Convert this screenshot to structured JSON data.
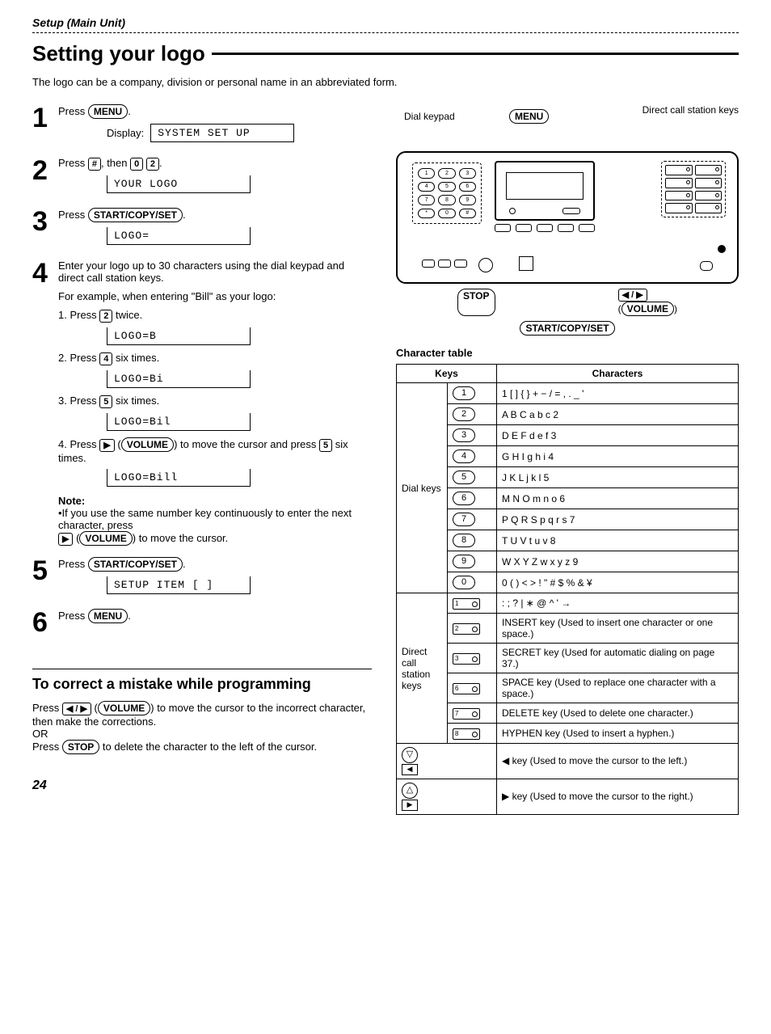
{
  "header": "Setup (Main Unit)",
  "title": "Setting your logo",
  "intro": "The logo can be a company, division or personal name in an abbreviated form.",
  "steps": {
    "s1": {
      "text": "Press ",
      "key": "MENU",
      "after": ".",
      "display_label": "Display:",
      "display": "SYSTEM SET UP"
    },
    "s2": {
      "text_a": "Press ",
      "k1": "#",
      "text_b": ", then ",
      "k2": "0",
      "k3": "2",
      "after": ".",
      "display": "YOUR LOGO"
    },
    "s3": {
      "text": "Press ",
      "key": "START/COPY/SET",
      "after": ".",
      "display": "LOGO="
    },
    "s4": {
      "line1": "Enter your logo up to 30 characters using the dial keypad and direct call station keys.",
      "line2": "For example, when entering \"Bill\" as your logo:",
      "sub1": {
        "text_a": "1. Press ",
        "k": "2",
        "text_b": " twice.",
        "display": "LOGO=B"
      },
      "sub2": {
        "text_a": "2. Press ",
        "k": "4",
        "text_b": " six times.",
        "display": "LOGO=Bi"
      },
      "sub3": {
        "text_a": "3. Press ",
        "k": "5",
        "text_b": " six times.",
        "display": "LOGO=Bil"
      },
      "sub4": {
        "text_a": "4. Press ",
        "arrow": "▶",
        "vol": "VOLUME",
        "text_b": " to move the cursor and press ",
        "k": "5",
        "text_c": " six times.",
        "display": "LOGO=Bill"
      },
      "note_title": "Note:",
      "note_body_a": "•If you use the same number key continuously to enter the next character, press",
      "note_arrow": "▶",
      "note_vol": "VOLUME",
      "note_body_b": " to move the cursor."
    },
    "s5": {
      "text": "Press ",
      "key": "START/COPY/SET",
      "after": ".",
      "display": "SETUP ITEM [   ]"
    },
    "s6": {
      "text": "Press ",
      "key": "MENU",
      "after": "."
    }
  },
  "correct": {
    "title": "To correct a mistake while programming",
    "p1_a": "Press ",
    "arrows": "◀ / ▶",
    "vol": "VOLUME",
    "p1_b": " to move the cursor to the incorrect character, then make the corrections.",
    "or": "OR",
    "p2_a": "Press ",
    "stop": "STOP",
    "p2_b": " to delete the character to the left of the cursor."
  },
  "diagram": {
    "dial_keypad": "Dial keypad",
    "menu": "MENU",
    "direct_call": "Direct call station keys",
    "stop": "STOP",
    "arrows": "◀ / ▶",
    "volume": "VOLUME",
    "start": "START/COPY/SET"
  },
  "char_table": {
    "title": "Character table",
    "head_keys": "Keys",
    "head_chars": "Characters",
    "dial_group": "Dial keys",
    "dial_rows": [
      {
        "k": "1",
        "c": "1 [ ] { } + − / = , . _ '"
      },
      {
        "k": "2",
        "c": "A B C a b c 2"
      },
      {
        "k": "3",
        "c": "D E F d e f 3"
      },
      {
        "k": "4",
        "c": "G H I g h i 4"
      },
      {
        "k": "5",
        "c": "J K L j k l 5"
      },
      {
        "k": "6",
        "c": "M N O m n o 6"
      },
      {
        "k": "7",
        "c": "P Q R S p q r s 7"
      },
      {
        "k": "8",
        "c": "T U V t u v 8"
      },
      {
        "k": "9",
        "c": "W X Y Z w x y z 9"
      },
      {
        "k": "0",
        "c": "0 ( ) < > ! \" # $ % & ¥"
      }
    ],
    "station_group": "Direct call station keys",
    "station_rows": [
      {
        "k": "1",
        "c": ": ; ? | ∗ @ ^ ' →"
      },
      {
        "k": "2",
        "c": "INSERT key (Used to insert one character or one space.)"
      },
      {
        "k": "3",
        "c": "SECRET key (Used for automatic dialing on page 37.)"
      },
      {
        "k": "6",
        "c": "SPACE key (Used to replace one character with a space.)"
      },
      {
        "k": "7",
        "c": "DELETE key (Used to delete one character.)"
      },
      {
        "k": "8",
        "c": "HYPHEN key (Used to insert a hyphen.)"
      }
    ],
    "arrow_rows": [
      {
        "sym1": "▽",
        "sym2": "◀",
        "c": "◀ key (Used to move the cursor to the left.)"
      },
      {
        "sym1": "△",
        "sym2": "▶",
        "c": "▶ key (Used to move the cursor to the right.)"
      }
    ]
  },
  "page": "24"
}
